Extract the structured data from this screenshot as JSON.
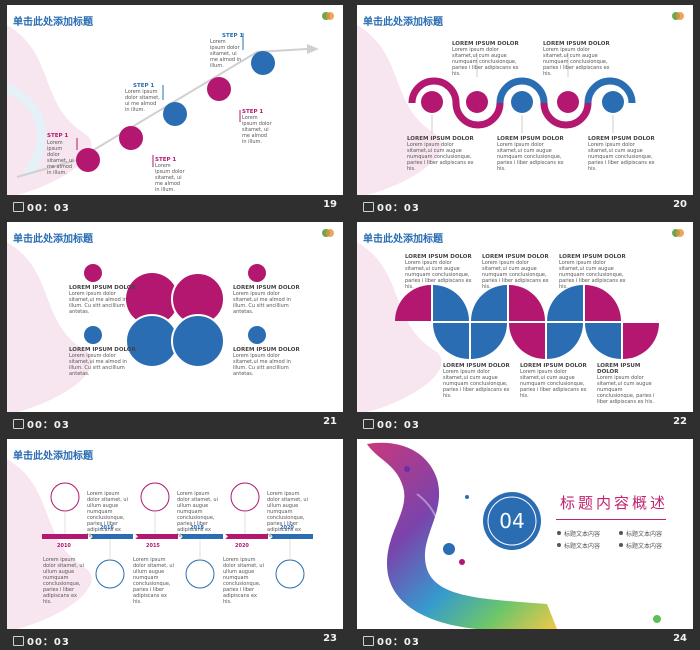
{
  "colors": {
    "magenta": "#b3176f",
    "blue": "#2a6db3",
    "bar": "#2f2f2f"
  },
  "slides": [
    {
      "title": "单击此处添加标题",
      "duration": "00：03",
      "number": "19",
      "steps": [
        {
          "label": "STEP 1",
          "text": "Lorem ipsum dolor sitamet, ui me almod in illum."
        },
        {
          "label": "STEP 1",
          "text": "Lorem ipsum dolor sitamet, ui me almod in illum."
        },
        {
          "label": "STEP 1",
          "text": "Lorem ipsum dolor sitamet, ui me almod in illum."
        },
        {
          "label": "STEP 1",
          "text": "Lorem ipsum dolor sitamet, ui me almod in illum."
        },
        {
          "label": "STEP 1",
          "text": "Lorem ipsum dolor sitamet, ui me almod in illum."
        }
      ]
    },
    {
      "title": "单击此处添加标题",
      "duration": "00：03",
      "number": "20",
      "heading": "LOREM IPSUM DOLOR",
      "body": "Lorem ipsum dolor sitamet,ui cum augue numquam conclusionque, paries i liber adipiscans ex his."
    },
    {
      "title": "单击此处添加标题",
      "duration": "00：03",
      "number": "21",
      "heading": "LOREM IPSUM DOLOR",
      "body": "Lorem ipsum dolor sitamet,ui me almod in illum. Cu sitt ancillium antetas."
    },
    {
      "title": "单击此处添加标题",
      "duration": "00：03",
      "number": "22",
      "heading": "LOREM IPSUM DOLOR",
      "body": "Lorem ipsum dolor sitamet,ui cum augue numquam conclusionque, paries i liber adipiscans ex his."
    },
    {
      "title": "单击此处添加标题",
      "duration": "00：03",
      "number": "23",
      "body": "Lorem ipsum dolor sitamet, ui ullum augue numquam conclusionque, paries i liber adipiscans ex his.",
      "years_top": [
        "2016",
        "2018",
        "2020"
      ],
      "years_bottom": [
        "2010",
        "2015",
        "2020"
      ]
    },
    {
      "duration": "00：03",
      "number": "24",
      "section_number": "04",
      "section_title": "标题内容概述",
      "items": [
        "标题文本内容",
        "标题文本内容",
        "标题文本内容",
        "标题文本内容"
      ]
    }
  ]
}
